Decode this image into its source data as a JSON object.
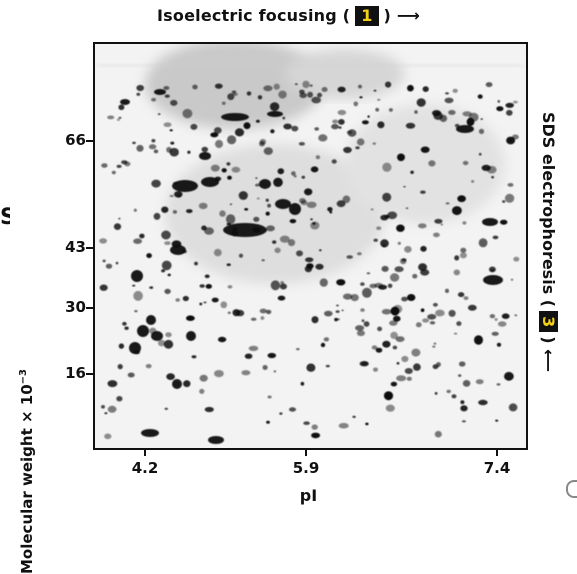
{
  "title": {
    "prefix": "Isoelectric focusing (",
    "step": "1",
    "suffix": ")",
    "arrow": "⟶"
  },
  "side_title": {
    "arrow": "⟵",
    "prefix": "SDS electrophoresis (",
    "step": "3",
    "suffix": ")"
  },
  "y_axis": {
    "label": "Molecular weight × 10",
    "exponent": "−3",
    "ticks": [
      "66",
      "43",
      "30",
      "16"
    ]
  },
  "x_axis": {
    "label": "pI",
    "ticks": [
      "4.2",
      "5.9",
      "7.4"
    ]
  },
  "left_edge_glyph": "S",
  "colors": {
    "badge_bg": "#111111",
    "badge_text": "#f2d116",
    "spot": "#111111",
    "gel_bg": "#f3f3f3"
  }
}
